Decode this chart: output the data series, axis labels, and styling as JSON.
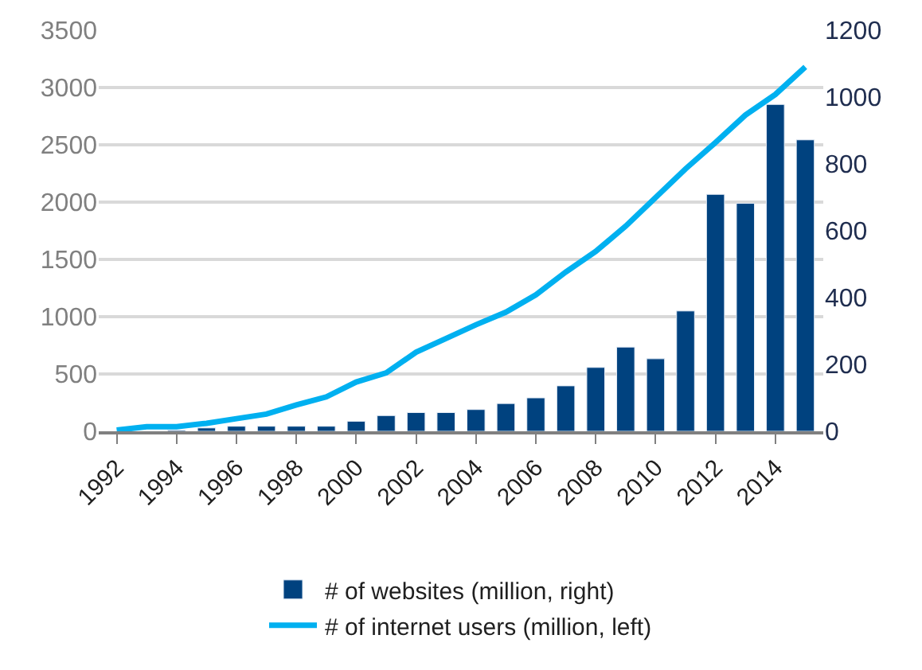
{
  "chart_data": {
    "type": "bar",
    "categories": [
      "1992",
      null,
      "1994",
      null,
      "1996",
      null,
      "1998",
      null,
      "2000",
      null,
      "2002",
      null,
      "2004",
      null,
      "2006",
      null,
      "2008",
      null,
      "2010",
      null,
      "2012",
      null,
      "2014",
      null
    ],
    "series": [
      {
        "name": "# of websites (million, right)",
        "axis": "y2",
        "color": "#00427f",
        "values": [
          null,
          null,
          3,
          10,
          15,
          15,
          15,
          15,
          30,
          47,
          56,
          56,
          65,
          83,
          100,
          136,
          191,
          252,
          217,
          360,
          709,
          682,
          978,
          872
        ]
      },
      {
        "name": "# of internet users (million, left)",
        "type": "line",
        "axis": "y",
        "color": "#00b0f0",
        "values": [
          10,
          40,
          40,
          70,
          110,
          150,
          230,
          300,
          430,
          510,
          690,
          810,
          930,
          1040,
          1190,
          1390,
          1570,
          1790,
          2040,
          2290,
          2520,
          2760,
          2940,
          3180
        ]
      }
    ],
    "ylim": [
      0,
      3500
    ],
    "yticks": [
      0,
      500,
      1000,
      1500,
      2000,
      2500,
      3000,
      3500
    ],
    "y2lim": [
      0,
      1200
    ],
    "y2ticks": [
      0,
      200,
      400,
      600,
      800,
      1000,
      1200
    ],
    "grid": "y",
    "legend": "bottom",
    "marker": "none",
    "line_style": "solid"
  }
}
